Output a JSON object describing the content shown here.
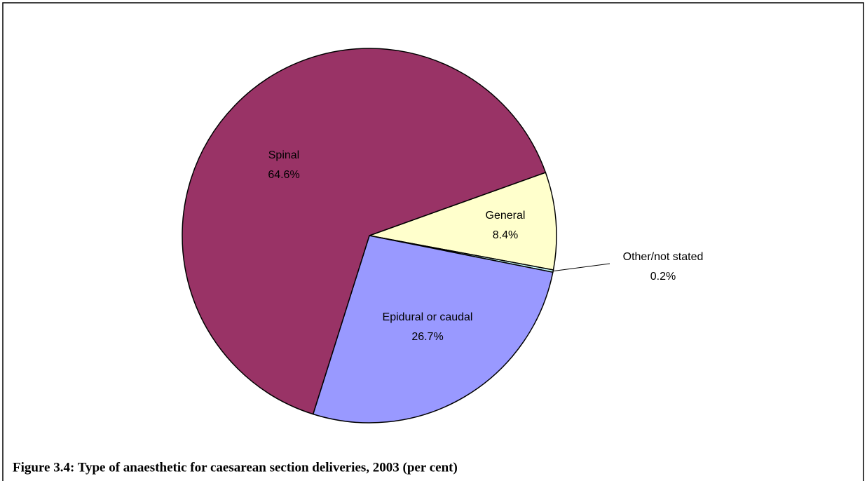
{
  "chart_data": {
    "type": "pie",
    "title": "Figure 3.4: Type of anaesthetic for caesarean section deliveries, 2003 (per cent)",
    "categories": [
      "General",
      "Other/not stated",
      "Epidural or caudal",
      "Spinal"
    ],
    "values": [
      8.4,
      0.2,
      26.7,
      64.6
    ],
    "value_labels": [
      "8.4%",
      "0.2%",
      "26.7%",
      "64.6%"
    ],
    "colors": [
      "#ffffcc",
      "#ccffff",
      "#9999ff",
      "#993366"
    ]
  }
}
